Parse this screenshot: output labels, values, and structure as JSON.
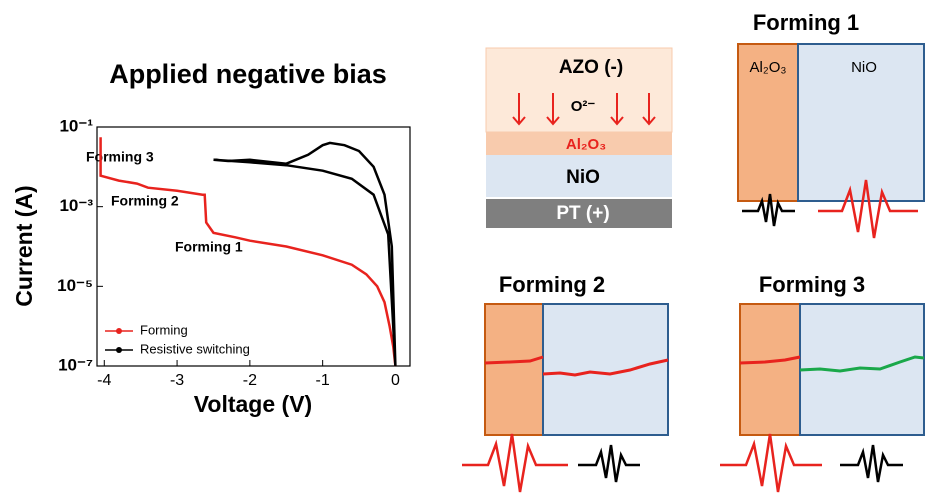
{
  "chart_data": {
    "type": "line",
    "title": "Applied negative bias",
    "x_label": "Voltage (V)",
    "y_label": "Current (A)",
    "log_y": true,
    "legend": "lower left",
    "xlim": [
      -4.1,
      0.2
    ],
    "xticks": [
      -4,
      -3,
      -2,
      -1,
      0
    ],
    "ylim": [
      1e-07,
      0.1
    ],
    "yticks": [
      {
        "value": 1e-07,
        "label": "10⁻⁷"
      },
      {
        "value": 1e-05,
        "label": "10⁻⁵"
      },
      {
        "value": 0.001,
        "label": "10⁻³"
      },
      {
        "value": 0.1,
        "label": "10⁻¹"
      }
    ],
    "annotations": [
      "Forming 3",
      "Forming 2",
      "Forming 1"
    ],
    "series": [
      {
        "name": "Forming",
        "color": "#e8231e",
        "x": [
          -4.05,
          -4.05,
          -3.8,
          -3.55,
          -3.4,
          -3.0,
          -2.65,
          -2.62,
          -2.6,
          -2.5,
          -2.2,
          -2.0,
          -1.5,
          -1.0,
          -0.6,
          -0.4,
          -0.25,
          -0.15,
          -0.08,
          -0.03,
          0.0
        ],
        "values": [
          0.055,
          0.006,
          0.0045,
          0.0038,
          0.003,
          0.0025,
          0.002,
          0.002,
          0.0004,
          0.00022,
          0.00017,
          0.00014,
          0.0001,
          6e-05,
          3.5e-05,
          2e-05,
          1e-05,
          4e-06,
          1e-06,
          3e-07,
          1e-07
        ]
      },
      {
        "name": "Resistive switching",
        "color": "#000000",
        "x": [
          -2.5,
          -2.3,
          -2.0,
          -1.5,
          -1.2,
          -1.0,
          -0.9,
          -0.7,
          -0.5,
          -0.3,
          -0.15,
          -0.05,
          0.0,
          -0.1,
          -0.3,
          -0.6,
          -1.0,
          -1.5,
          -2.0,
          -2.5
        ],
        "values": [
          0.015,
          0.014,
          0.015,
          0.012,
          0.02,
          0.035,
          0.04,
          0.035,
          0.025,
          0.01,
          0.002,
          0.0001,
          1e-07,
          0.0002,
          0.002,
          0.005,
          0.008,
          0.011,
          0.013,
          0.015
        ]
      }
    ]
  },
  "diagram": {
    "stack": {
      "top": "AZO (-)",
      "ion": "O²⁻",
      "oxide": "Al₂O₃",
      "middle": "NiO",
      "bottom": "PT (+)"
    },
    "forming_1": {
      "title": "Forming 1",
      "left": "Al₂O₃",
      "right": "NiO"
    },
    "forming_2": {
      "title": "Forming 2"
    },
    "forming_3": {
      "title": "Forming 3"
    }
  }
}
